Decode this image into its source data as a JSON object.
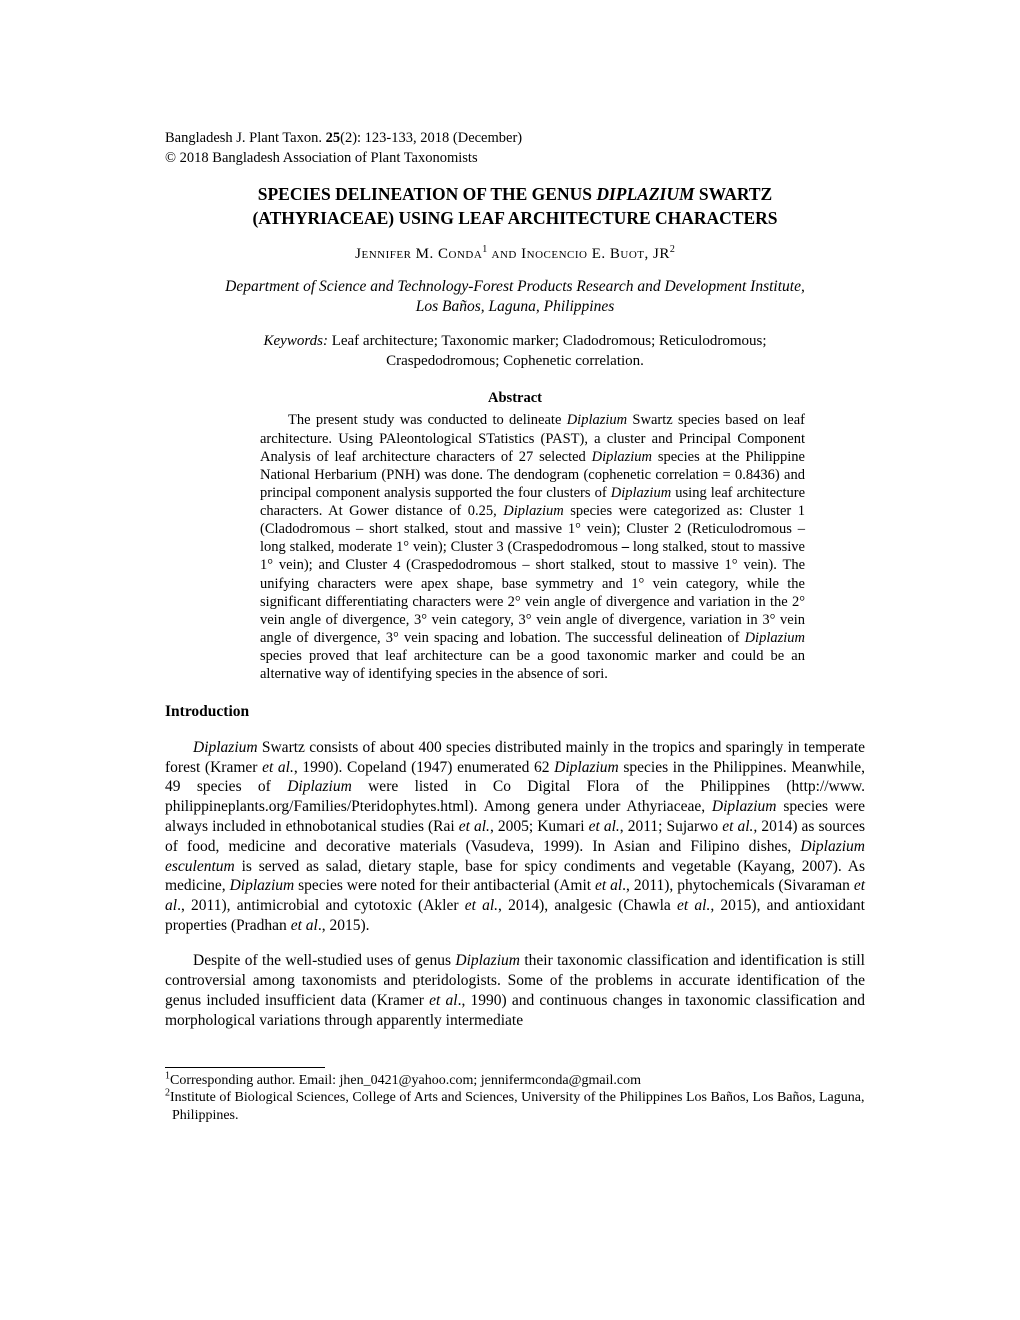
{
  "header": {
    "journal_prefix": "Bangladesh J. Plant Taxon. ",
    "volume_bold": "25",
    "issue_pages": "(2): 123-133, 2018 (December)",
    "copyright": "© 2018 Bangladesh Association of Plant Taxonomists"
  },
  "title": {
    "line1_pre": "SPECIES DELINEATION OF  THE GENUS ",
    "line1_ital": "DIPLAZIUM",
    "line1_post": " SWARTZ",
    "line2": "(ATHYRIACEAE) USING LEAF ARCHITECTURE CHARACTERS"
  },
  "authors": {
    "a1_first": "J",
    "a1_rest": "ennifer",
    "a1_mid": " M. C",
    "a1_last": "onda",
    "sup1": "1",
    "and": " and ",
    "a2_first": "I",
    "a2_rest": "nocencio",
    "a2_mid": " E. B",
    "a2_last": "uot",
    "a2_suffix": ", JR",
    "sup2": "2"
  },
  "affiliation": {
    "line1": "Department of Science and Technology-Forest Products Research and Development Institute,",
    "line2": "Los Baños, Laguna, Philippines"
  },
  "keywords": {
    "label": "Keywords:",
    "text": " Leaf architecture; Taxonomic marker; Cladodromous; Reticulodromous; Craspedodromous; Cophenetic correlation."
  },
  "abstract": {
    "heading": "Abstract",
    "t1": "The present study was conducted to delineate ",
    "i1": "Diplazium",
    "t2": " Swartz species based on leaf architecture. Using PAleontological STatistics (PAST), a cluster and Principal Component Analysis of leaf architecture characters of 27 selected ",
    "i2": "Diplazium",
    "t3": " species at the Philippine National Herbarium (PNH) was done. The dendogram (cophenetic correlation = 0.8436) and principal component analysis supported the four clusters of ",
    "i3": "Diplazium",
    "t4": " using leaf architecture characters. At Gower distance of 0.25, ",
    "i4": "Diplazium",
    "t5": " species were categorized as: Cluster 1 (Cladodromous – short stalked, stout and massive 1° vein); Cluster 2 (Reticulodromous – long stalked, moderate 1° vein); Cluster 3 (Craspedodromous ",
    "dash": "–",
    "t6": " long stalked, stout to massive 1° vein); and Cluster 4 (Craspedodromous – short stalked, stout to massive 1° vein). The unifying characters were apex shape, base symmetry and 1° vein category, while the significant differentiating characters were 2° vein angle of divergence and variation in the 2° vein angle of divergence, 3° vein category, 3° vein angle of divergence, variation in 3° vein angle of divergence, 3° vein spacing and lobation. The successful delineation of ",
    "i5": "Diplazium",
    "t7": " species proved that leaf architecture can be a good taxonomic marker and could be an alternative way of identifying species in the absence of sori."
  },
  "intro": {
    "heading": "Introduction",
    "p1_i1": "Diplazium",
    "p1_t1": " Swartz consists of about 400 species distributed mainly in the tropics and sparingly in temperate forest (Kramer ",
    "p1_i2": "et al.",
    "p1_t2": ", 1990). Copeland (1947) enumerated 62 ",
    "p1_i3": "Diplazium",
    "p1_t3": " species in the Philippines. Meanwhile, 49 species of ",
    "p1_i4": "Diplazium",
    "p1_t4": " were listed in Co Digital Flora of the Philippines (http://www. philippineplants.org/Families/Pteridophytes.html). Among genera under Athyriaceae, ",
    "p1_i5": "Diplazium",
    "p1_t5": " species were always included in ethnobotanical studies (Rai ",
    "p1_i6": "et al.",
    "p1_t6": ", 2005; Kumari ",
    "p1_i7": "et al.",
    "p1_t7": ", 2011; Sujarwo ",
    "p1_i8": "et al.,",
    "p1_t8": " 2014) as sources of food, medicine and decorative materials (Vasudeva, 1999). In Asian and Filipino dishes, ",
    "p1_i9": "Diplazium esculentum",
    "p1_t9": " is served as salad, dietary staple, base for spicy condiments and vegetable (Kayang, 2007). As medicine, ",
    "p1_i10": "Diplazium",
    "p1_t10": "  species were noted for their antibacterial  (Amit ",
    "p1_i11": "et al",
    "p1_t11": "., 2011), phytochemicals (Sivaraman ",
    "p1_i12": "et al",
    "p1_t12": "., 2011), antimicrobial and cytotoxic (Akler ",
    "p1_i13": "et al.",
    "p1_t13": ", 2014), analgesic (Chawla ",
    "p1_i14": "et al.,",
    "p1_t14": " 2015), and antioxidant properties (Pradhan ",
    "p1_i15": "et al",
    "p1_t15": "., 2015).",
    "p2_t1": "Despite of the well-studied uses of genus ",
    "p2_i1": "Diplazium",
    "p2_t2": " their taxonomic classification and identification is still controversial among taxonomists and pteridologists. Some of the problems in accurate identification of the genus included insufficient data (Kramer ",
    "p2_i2": "et al",
    "p2_t3": "., 1990) and continuous changes in taxonomic classification and morphological variations through apparently intermediate"
  },
  "footnotes": {
    "f1_sup": "1",
    "f1_text": "Corresponding author. Email: jhen_0421@yahoo.com; jennifermconda@gmail.com",
    "f2_sup": "2",
    "f2_text": "Institute of Biological Sciences, College of Arts and Sciences, University of the Philippines Los Baños, Los Baños, Laguna, Philippines."
  }
}
